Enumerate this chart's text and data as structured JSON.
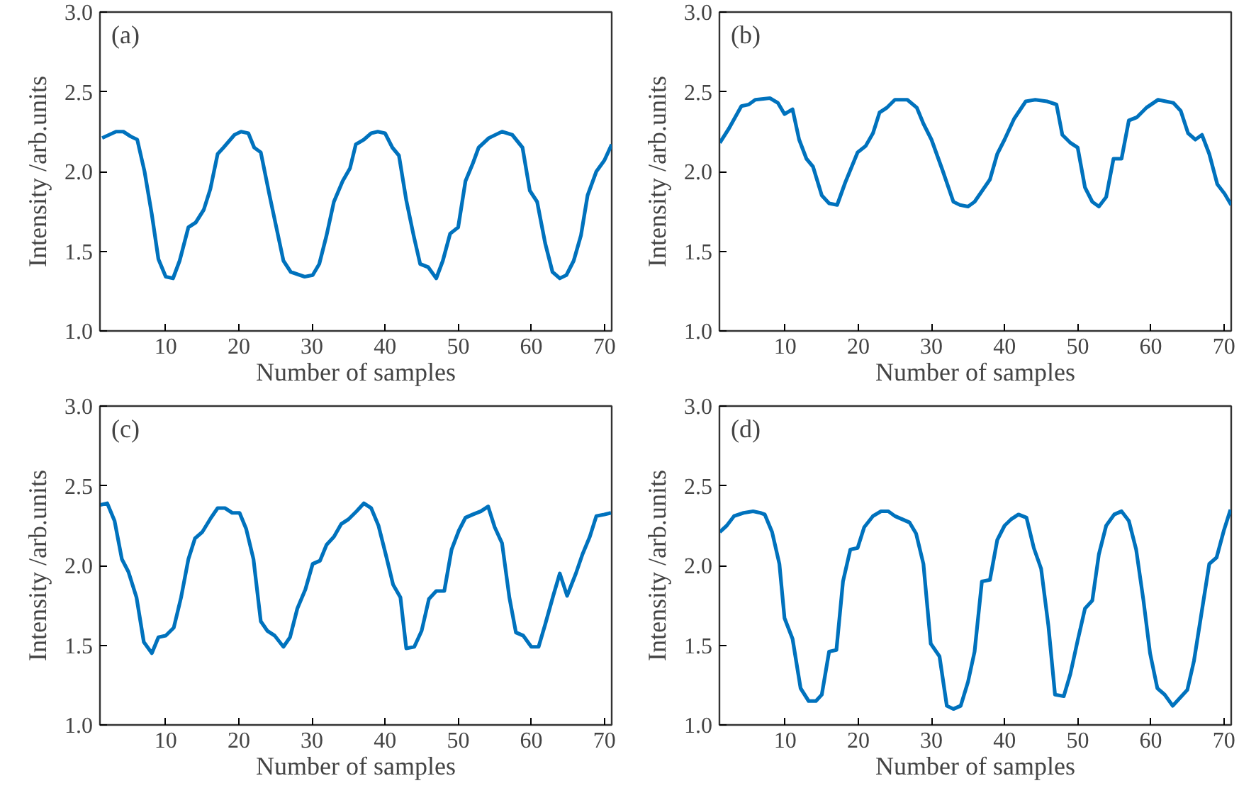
{
  "chart_data": [
    {
      "type": "line",
      "annotations": [
        "(a)"
      ],
      "xlabel": "Number of samples",
      "ylabel": "Intensity /arb.units",
      "xlim": [
        1,
        71
      ],
      "xticks": [
        10,
        20,
        30,
        40,
        50,
        60,
        70
      ],
      "ylim": [
        1,
        3
      ],
      "yticks": [
        {
          "value": 1,
          "label": "1.0"
        },
        {
          "value": 1.5,
          "label": "1.5"
        },
        {
          "value": 2,
          "label": "2.0"
        },
        {
          "value": 2.5,
          "label": "2.5"
        },
        {
          "value": 3,
          "label": "3.0"
        }
      ],
      "grid": false,
      "series": [
        {
          "color": "#0072bd",
          "x": [
            1.3,
            3.2,
            4.2,
            5.2,
            6.1,
            7.1,
            8.1,
            9.0,
            10,
            11,
            11.9,
            13.1,
            14.1,
            15.2,
            16.1,
            17.1,
            17.9,
            19.4,
            20.3,
            21.3,
            22.1,
            23,
            24.2,
            26.1,
            27.1,
            29,
            30.1,
            31,
            32,
            33,
            34.2,
            35.2,
            36,
            37.1,
            38.1,
            39,
            40,
            41,
            41.9,
            42.9,
            43.9,
            44.8,
            45.9,
            47,
            47.9,
            48.9,
            50,
            51,
            52,
            52.8,
            54.2,
            56,
            57.4,
            58.8,
            59.8,
            60.8,
            61.9,
            62.9,
            63.9,
            64.8,
            65.8,
            66.8,
            67.7,
            68.9,
            70,
            71
          ],
          "values": [
            2.21,
            2.25,
            2.25,
            2.22,
            2.2,
            2.0,
            1.73,
            1.45,
            1.34,
            1.33,
            1.44,
            1.65,
            1.68,
            1.76,
            1.89,
            2.11,
            2.15,
            2.23,
            2.25,
            2.24,
            2.15,
            2.12,
            1.85,
            1.44,
            1.37,
            1.34,
            1.35,
            1.42,
            1.6,
            1.81,
            1.94,
            2.02,
            2.17,
            2.2,
            2.24,
            2.25,
            2.24,
            2.15,
            2.1,
            1.82,
            1.6,
            1.42,
            1.4,
            1.33,
            1.44,
            1.61,
            1.65,
            1.94,
            2.05,
            2.15,
            2.21,
            2.25,
            2.23,
            2.15,
            1.88,
            1.81,
            1.55,
            1.37,
            1.33,
            1.35,
            1.44,
            1.6,
            1.85,
            2.0,
            2.07,
            2.17
          ]
        }
      ]
    },
    {
      "type": "line",
      "annotations": [
        "(b)"
      ],
      "xlabel": "Number of samples",
      "ylabel": "Intensity /arb.units",
      "xlim": [
        1,
        71
      ],
      "xticks": [
        10,
        20,
        30,
        40,
        50,
        60,
        70
      ],
      "ylim": [
        1,
        3
      ],
      "yticks": [
        {
          "value": 1,
          "label": "1.0"
        },
        {
          "value": 1.5,
          "label": "1.5"
        },
        {
          "value": 2,
          "label": "2.0"
        },
        {
          "value": 2.5,
          "label": "2.5"
        },
        {
          "value": 3,
          "label": "3.0"
        }
      ],
      "grid": false,
      "series": [
        {
          "color": "#0072bd",
          "x": [
            1.05,
            2.3,
            4,
            5,
            5.9,
            7.9,
            9,
            9.9,
            11,
            11.9,
            12.9,
            13.8,
            15,
            16,
            17.1,
            18.2,
            19.9,
            21,
            22,
            22.9,
            23.9,
            25,
            26.7,
            28,
            28.9,
            30,
            31.5,
            33,
            33.9,
            35,
            35.9,
            38,
            39,
            40,
            41.3,
            42.9,
            44.2,
            45.8,
            47.1,
            47.9,
            49,
            50,
            51,
            52,
            52.9,
            53.9,
            54.9,
            56,
            57,
            58.1,
            59.4,
            61,
            63.1,
            64.1,
            65.1,
            66.1,
            67,
            68,
            69.1,
            70.1,
            71
          ],
          "values": [
            2.18,
            2.27,
            2.41,
            2.42,
            2.45,
            2.46,
            2.43,
            2.36,
            2.39,
            2.2,
            2.08,
            2.03,
            1.85,
            1.8,
            1.79,
            1.93,
            2.12,
            2.16,
            2.24,
            2.37,
            2.4,
            2.45,
            2.45,
            2.4,
            2.3,
            2.2,
            2.01,
            1.81,
            1.79,
            1.78,
            1.81,
            1.95,
            2.11,
            2.2,
            2.33,
            2.44,
            2.45,
            2.44,
            2.42,
            2.23,
            2.18,
            2.15,
            1.9,
            1.81,
            1.78,
            1.84,
            2.08,
            2.08,
            2.32,
            2.34,
            2.4,
            2.45,
            2.43,
            2.38,
            2.24,
            2.2,
            2.23,
            2.11,
            1.92,
            1.86,
            1.79
          ]
        }
      ]
    },
    {
      "type": "line",
      "annotations": [
        "(c)"
      ],
      "xlabel": "Number of samples",
      "ylabel": "Intensity /arb.units",
      "xlim": [
        1,
        71
      ],
      "xticks": [
        10,
        20,
        30,
        40,
        50,
        60,
        70
      ],
      "ylim": [
        1,
        3
      ],
      "yticks": [
        {
          "value": 1,
          "label": "1.0"
        },
        {
          "value": 1.5,
          "label": "1.5"
        },
        {
          "value": 2,
          "label": "2.0"
        },
        {
          "value": 2.5,
          "label": "2.5"
        },
        {
          "value": 3,
          "label": "3.0"
        }
      ],
      "grid": false,
      "series": [
        {
          "color": "#0072bd",
          "x": [
            1.05,
            2,
            3,
            4,
            4.9,
            6,
            7,
            8.1,
            9,
            10,
            11.1,
            12.1,
            13.1,
            14,
            15,
            16.2,
            17.1,
            18.1,
            19.1,
            20.1,
            21,
            22,
            23,
            23.9,
            24.9,
            26.1,
            27,
            28,
            29.1,
            30.1,
            31.1,
            32,
            33,
            34,
            35,
            36.1,
            37.1,
            38.1,
            39.1,
            40.2,
            41.1,
            42.1,
            42.9,
            44,
            45,
            46,
            47,
            48.1,
            49.1,
            50.1,
            51,
            52,
            53.1,
            54.1,
            55,
            56,
            57,
            57.9,
            58.9,
            60,
            61,
            61.9,
            63,
            63.9,
            64.9,
            66.1,
            67,
            68,
            68.9,
            70,
            70.9
          ],
          "values": [
            2.38,
            2.39,
            2.28,
            2.04,
            1.96,
            1.8,
            1.52,
            1.45,
            1.55,
            1.56,
            1.61,
            1.8,
            2.04,
            2.17,
            2.21,
            2.3,
            2.36,
            2.36,
            2.33,
            2.33,
            2.23,
            2.04,
            1.65,
            1.59,
            1.56,
            1.49,
            1.55,
            1.73,
            1.85,
            2.01,
            2.03,
            2.13,
            2.18,
            2.26,
            2.29,
            2.34,
            2.39,
            2.36,
            2.25,
            2.05,
            1.88,
            1.8,
            1.48,
            1.49,
            1.59,
            1.79,
            1.84,
            1.84,
            2.1,
            2.22,
            2.3,
            2.32,
            2.34,
            2.37,
            2.24,
            2.14,
            1.8,
            1.58,
            1.56,
            1.49,
            1.49,
            1.63,
            1.81,
            1.95,
            1.81,
            1.95,
            2.07,
            2.18,
            2.31,
            2.32,
            2.33
          ]
        }
      ]
    },
    {
      "type": "line",
      "annotations": [
        "(d)"
      ],
      "xlabel": "Number of samples",
      "ylabel": "Intensity /arb.units",
      "xlim": [
        1,
        71
      ],
      "xticks": [
        10,
        20,
        30,
        40,
        50,
        60,
        70
      ],
      "ylim": [
        1,
        3
      ],
      "yticks": [
        {
          "value": 1,
          "label": "1.0"
        },
        {
          "value": 1.5,
          "label": "1.5"
        },
        {
          "value": 2,
          "label": "2.0"
        },
        {
          "value": 2.5,
          "label": "2.5"
        },
        {
          "value": 3,
          "label": "3.0"
        }
      ],
      "grid": false,
      "series": [
        {
          "color": "#0072bd",
          "x": [
            1.05,
            2,
            3,
            4.3,
            5.6,
            6.6,
            7.2,
            8.2,
            9.2,
            9.9,
            11,
            12.1,
            13.2,
            14.2,
            15,
            16,
            17,
            17.9,
            18.9,
            19.9,
            20.8,
            22,
            23.1,
            24.1,
            25,
            26,
            27,
            27.9,
            28.9,
            29.9,
            31.1,
            32.1,
            33,
            34,
            35,
            35.9,
            36.9,
            38,
            39,
            40,
            40.9,
            41.9,
            43,
            44,
            45,
            46,
            46.9,
            48.1,
            49,
            50,
            51,
            52,
            52.9,
            53.9,
            55,
            56,
            57,
            58,
            59,
            59.9,
            60.9,
            61.9,
            63,
            64,
            65,
            65.9,
            66.9,
            68,
            69,
            70,
            70.9
          ],
          "values": [
            2.21,
            2.25,
            2.31,
            2.33,
            2.34,
            2.33,
            2.32,
            2.21,
            2.01,
            1.67,
            1.54,
            1.23,
            1.15,
            1.15,
            1.19,
            1.46,
            1.47,
            1.9,
            2.1,
            2.11,
            2.24,
            2.31,
            2.34,
            2.34,
            2.31,
            2.29,
            2.27,
            2.2,
            2.01,
            1.51,
            1.43,
            1.12,
            1.1,
            1.12,
            1.27,
            1.46,
            1.9,
            1.91,
            2.16,
            2.25,
            2.29,
            2.32,
            2.3,
            2.11,
            1.98,
            1.62,
            1.19,
            1.18,
            1.32,
            1.53,
            1.73,
            1.78,
            2.07,
            2.25,
            2.32,
            2.34,
            2.28,
            2.1,
            1.78,
            1.45,
            1.23,
            1.19,
            1.12,
            1.17,
            1.22,
            1.4,
            1.69,
            2.01,
            2.05,
            2.22,
            2.35
          ]
        }
      ]
    }
  ]
}
